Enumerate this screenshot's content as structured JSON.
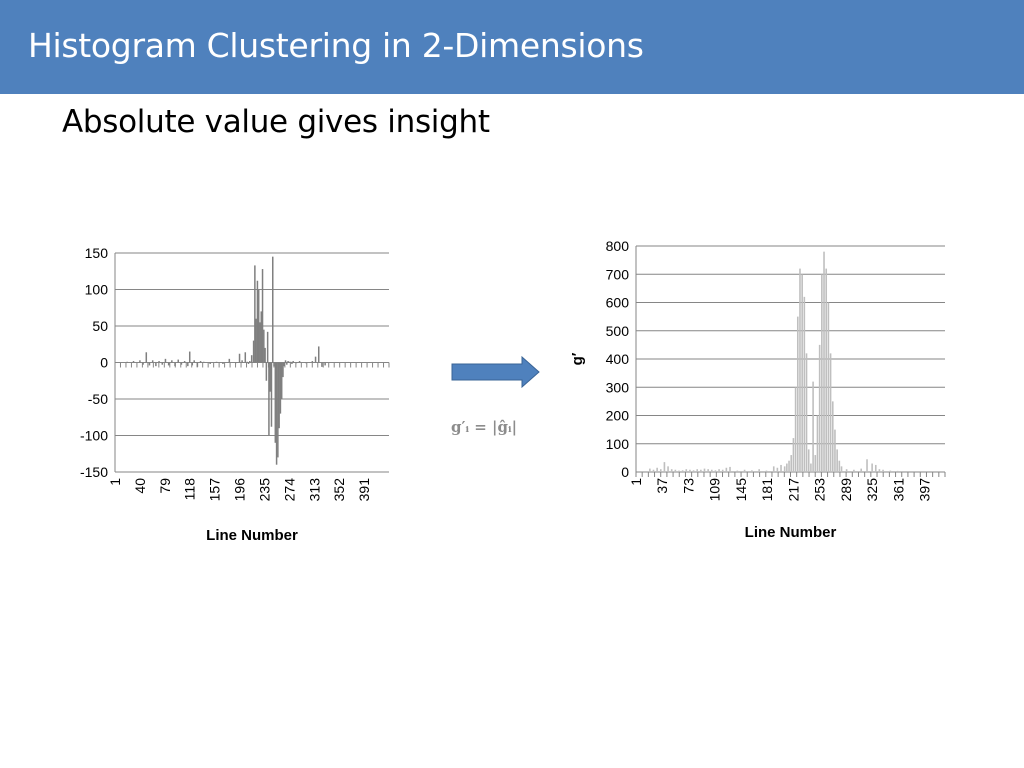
{
  "slide": {
    "title": "Histogram Clustering in 2-Dimensions",
    "subtitle": "Absolute value gives insight",
    "formula": "g′ᵢ = |ĝᵢ|",
    "colors": {
      "title_bar": "#4f81bd",
      "arrow": "#4f81bd",
      "left_series": "#7f7f7f",
      "right_series": "#bfbfbf",
      "grid": "#868686"
    }
  },
  "chart_data": [
    {
      "type": "bar",
      "xlabel": "Line Number",
      "ylabel": "",
      "ylim": [
        -150,
        150
      ],
      "yticks": [
        150,
        100,
        50,
        0,
        -50,
        -100,
        -150
      ],
      "xlim": [
        1,
        430
      ],
      "xticks": [
        1,
        40,
        79,
        118,
        157,
        196,
        235,
        274,
        313,
        352,
        391
      ],
      "grid": true,
      "legend": "none",
      "x": [
        20,
        30,
        40,
        45,
        50,
        55,
        60,
        65,
        70,
        75,
        80,
        85,
        90,
        95,
        100,
        105,
        110,
        115,
        118,
        122,
        125,
        130,
        135,
        140,
        150,
        160,
        170,
        180,
        190,
        196,
        200,
        205,
        208,
        210,
        212,
        215,
        218,
        220,
        222,
        224,
        226,
        228,
        230,
        232,
        234,
        236,
        238,
        240,
        242,
        244,
        246,
        248,
        250,
        252,
        254,
        256,
        258,
        260,
        262,
        264,
        266,
        268,
        270,
        272,
        274,
        276,
        278,
        280,
        285,
        290,
        300,
        310,
        315,
        320,
        325,
        330
      ],
      "values": [
        1,
        2,
        3,
        -3,
        14,
        -4,
        3,
        -5,
        2,
        -3,
        5,
        -4,
        3,
        -5,
        4,
        -3,
        2,
        -5,
        15,
        -4,
        3,
        -6,
        2,
        1,
        -2,
        1,
        -2,
        5,
        -1,
        12,
        3,
        14,
        1,
        -2,
        2,
        10,
        30,
        133,
        60,
        112,
        100,
        55,
        70,
        128,
        45,
        20,
        -25,
        42,
        -100,
        -40,
        -88,
        145,
        -5,
        -110,
        -140,
        -130,
        -90,
        -70,
        -50,
        -20,
        -5,
        3,
        -3,
        2,
        1,
        1,
        -2,
        2,
        -1,
        2,
        -1,
        2,
        8,
        22,
        -6,
        -4
      ]
    },
    {
      "type": "bar",
      "xlabel": "Line Number",
      "ylabel": "g′",
      "ylim": [
        0,
        800
      ],
      "yticks": [
        800,
        700,
        600,
        500,
        400,
        300,
        200,
        100,
        0
      ],
      "xlim": [
        1,
        425
      ],
      "xticks": [
        1,
        37,
        73,
        109,
        145,
        181,
        217,
        253,
        289,
        325,
        361,
        397
      ],
      "grid": true,
      "legend": "none",
      "x": [
        20,
        25,
        30,
        35,
        40,
        45,
        50,
        55,
        60,
        65,
        70,
        75,
        80,
        85,
        90,
        95,
        100,
        105,
        110,
        115,
        120,
        125,
        130,
        140,
        150,
        160,
        170,
        180,
        190,
        195,
        200,
        205,
        208,
        211,
        214,
        217,
        220,
        223,
        226,
        229,
        232,
        235,
        238,
        241,
        244,
        247,
        250,
        253,
        256,
        259,
        262,
        265,
        268,
        271,
        274,
        277,
        280,
        283,
        290,
        300,
        310,
        318,
        325,
        330,
        335,
        340,
        350,
        360
      ],
      "values": [
        12,
        8,
        15,
        10,
        35,
        20,
        10,
        8,
        5,
        6,
        10,
        8,
        6,
        10,
        8,
        12,
        10,
        8,
        6,
        10,
        8,
        15,
        18,
        5,
        8,
        6,
        10,
        5,
        20,
        15,
        25,
        20,
        30,
        40,
        60,
        120,
        300,
        550,
        720,
        700,
        620,
        420,
        80,
        30,
        320,
        60,
        200,
        450,
        700,
        780,
        720,
        600,
        420,
        250,
        150,
        80,
        40,
        20,
        10,
        8,
        12,
        45,
        30,
        25,
        10,
        8,
        5,
        4
      ]
    }
  ]
}
